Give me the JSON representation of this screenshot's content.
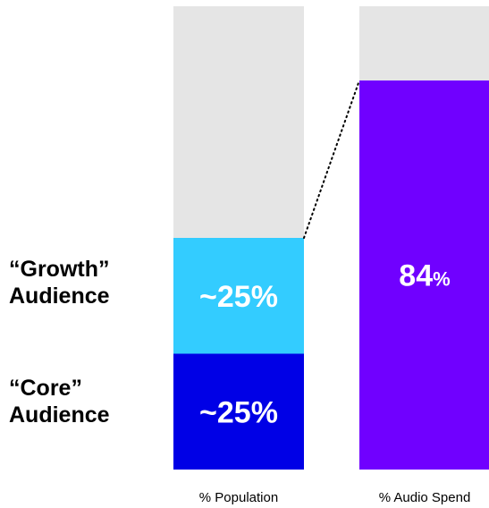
{
  "chart_data": {
    "type": "bar",
    "stacked": true,
    "categories": [
      "% Population",
      "% Audio Spend"
    ],
    "ylim": [
      0,
      100
    ],
    "grid": false,
    "legend": "none",
    "series": [
      {
        "name": "“Core” Audience",
        "values": [
          25,
          null
        ],
        "labels": [
          "~25%",
          ""
        ],
        "color": "#0000e6"
      },
      {
        "name": "“Growth” Audience",
        "values": [
          25,
          null
        ],
        "labels": [
          "~25%",
          ""
        ],
        "color": "#33ccff"
      },
      {
        "name": "",
        "values": [
          null,
          84
        ],
        "labels": [
          "",
          "84%"
        ],
        "color": "#7000ff"
      },
      {
        "name": "",
        "values": [
          50,
          16
        ],
        "labels": [
          "",
          ""
        ],
        "color": "#e5e5e5"
      }
    ]
  },
  "labels": {
    "growth_line1": "“Growth”",
    "growth_line2": "Audience",
    "core_line1": "“Core”",
    "core_line2": "Audience"
  },
  "colors": {
    "label_text": "#ffffff",
    "axis_text": "#000000",
    "connector": "#000000"
  }
}
